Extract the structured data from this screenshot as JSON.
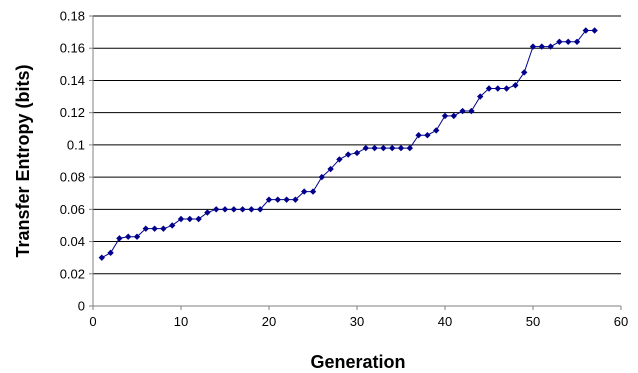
{
  "chart_data": {
    "type": "line",
    "xlabel": "Generation",
    "ylabel": "Transfer Entropy (bits)",
    "xlim": [
      0,
      60
    ],
    "ylim": [
      0,
      0.18
    ],
    "xticks": [
      0,
      10,
      20,
      30,
      40,
      50,
      60
    ],
    "xtick_labels": [
      "0",
      "10",
      "20",
      "30",
      "40",
      "50",
      "60"
    ],
    "yticks": [
      0,
      0.02,
      0.04,
      0.06,
      0.08,
      0.1,
      0.12,
      0.14,
      0.16,
      0.18
    ],
    "ytick_labels": [
      "0",
      "0.02",
      "0.04",
      "0.06",
      "0.08",
      "0.1",
      "0.12",
      "0.14",
      "0.16",
      "0.18"
    ],
    "grid": "horizontal",
    "legend": "none",
    "series_color": "#00008b",
    "series": [
      {
        "x": [
          1,
          2,
          3,
          4,
          5,
          6,
          7,
          8,
          9,
          10,
          11,
          12,
          13,
          14,
          15,
          16,
          17,
          18,
          19,
          20,
          21,
          22,
          23,
          24,
          25,
          26,
          27,
          28,
          29,
          30,
          31,
          32,
          33,
          34,
          35,
          36,
          37,
          38,
          39,
          40,
          41,
          42,
          43,
          44,
          45,
          46,
          47,
          48,
          49,
          50,
          51,
          52,
          53,
          54,
          55,
          56,
          57
        ],
        "values": [
          0.03,
          0.033,
          0.042,
          0.043,
          0.043,
          0.048,
          0.048,
          0.048,
          0.05,
          0.054,
          0.054,
          0.054,
          0.058,
          0.06,
          0.06,
          0.06,
          0.06,
          0.06,
          0.06,
          0.066,
          0.066,
          0.066,
          0.066,
          0.071,
          0.071,
          0.08,
          0.085,
          0.091,
          0.094,
          0.095,
          0.098,
          0.098,
          0.098,
          0.098,
          0.098,
          0.098,
          0.106,
          0.106,
          0.109,
          0.118,
          0.118,
          0.121,
          0.121,
          0.13,
          0.135,
          0.135,
          0.135,
          0.137,
          0.145,
          0.161,
          0.161,
          0.161,
          0.164,
          0.164,
          0.164,
          0.171,
          0.171
        ]
      }
    ]
  }
}
